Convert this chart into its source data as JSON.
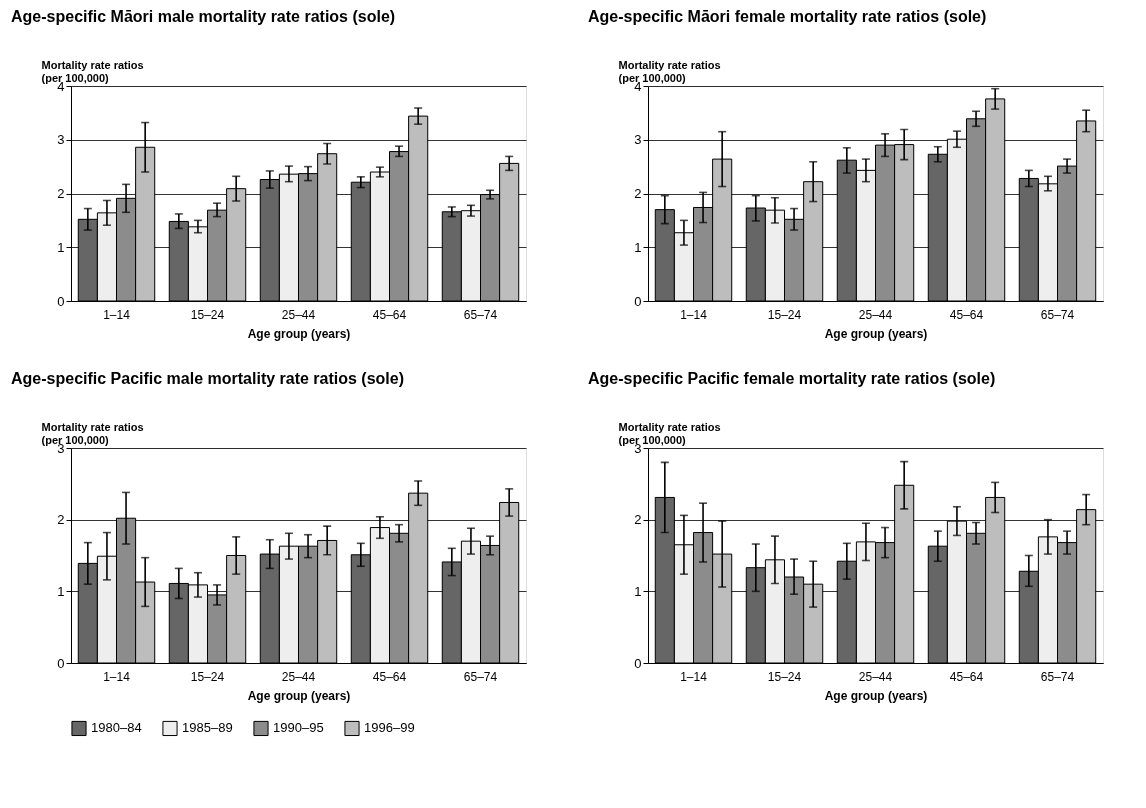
{
  "chart_data": [
    {
      "type": "bar",
      "title": "Age-specific Māori male mortality rate ratios (sole)",
      "ylabel": "Mortality rate ratios\n(per 100,000)",
      "xlabel": "Age group (years)",
      "categories": [
        "1–14",
        "15–24",
        "25–44",
        "45–64",
        "65–74"
      ],
      "ylim": [
        0,
        4
      ],
      "yticks": [
        0,
        1,
        2,
        3,
        4
      ],
      "grid": "y",
      "legend": "bottom",
      "series": [
        {
          "name": "1980–84",
          "color": "#666666",
          "values": [
            1.52,
            1.48,
            2.26,
            2.21,
            1.66
          ],
          "errors": [
            [
              1.32,
              1.72
            ],
            [
              1.35,
              1.62
            ],
            [
              2.1,
              2.42
            ],
            [
              2.11,
              2.31
            ],
            [
              1.57,
              1.75
            ]
          ]
        },
        {
          "name": "1985–89",
          "color": "#eeeeee",
          "values": [
            1.64,
            1.38,
            2.36,
            2.4,
            1.68
          ],
          "errors": [
            [
              1.41,
              1.87
            ],
            [
              1.27,
              1.5
            ],
            [
              2.22,
              2.51
            ],
            [
              2.31,
              2.49
            ],
            [
              1.58,
              1.78
            ]
          ]
        },
        {
          "name": "1990–95",
          "color": "#8c8c8c",
          "values": [
            1.91,
            1.69,
            2.37,
            2.78,
            1.98
          ],
          "errors": [
            [
              1.65,
              2.17
            ],
            [
              1.57,
              1.82
            ],
            [
              2.24,
              2.5
            ],
            [
              2.69,
              2.88
            ],
            [
              1.9,
              2.06
            ]
          ]
        },
        {
          "name": "1996–99",
          "color": "#bdbdbd",
          "values": [
            2.86,
            2.09,
            2.74,
            3.44,
            2.56
          ],
          "errors": [
            [
              2.4,
              3.32
            ],
            [
              1.86,
              2.32
            ],
            [
              2.55,
              2.93
            ],
            [
              3.29,
              3.59
            ],
            [
              2.43,
              2.69
            ]
          ]
        }
      ]
    },
    {
      "type": "bar",
      "title": "Age-specific Māori female mortality rate ratios (sole)",
      "ylabel": "Mortality rate ratios\n(per 100,000)",
      "xlabel": "Age group (years)",
      "categories": [
        "1–14",
        "15–24",
        "25–44",
        "45–64",
        "65–74"
      ],
      "ylim": [
        0,
        4
      ],
      "yticks": [
        0,
        1,
        2,
        3,
        4
      ],
      "grid": "y",
      "legend": "bottom",
      "series": [
        {
          "name": "1980–84",
          "color": "#666666",
          "values": [
            1.7,
            1.73,
            2.62,
            2.73,
            2.28
          ],
          "errors": [
            [
              1.44,
              1.96
            ],
            [
              1.49,
              1.96
            ],
            [
              2.38,
              2.85
            ],
            [
              2.59,
              2.87
            ],
            [
              2.13,
              2.43
            ]
          ]
        },
        {
          "name": "1985–89",
          "color": "#eeeeee",
          "values": [
            1.27,
            1.69,
            2.43,
            3.01,
            2.18
          ],
          "errors": [
            [
              1.04,
              1.5
            ],
            [
              1.45,
              1.92
            ],
            [
              2.22,
              2.64
            ],
            [
              2.86,
              3.16
            ],
            [
              2.05,
              2.32
            ]
          ]
        },
        {
          "name": "1990–95",
          "color": "#8c8c8c",
          "values": [
            1.74,
            1.52,
            2.9,
            3.39,
            2.51
          ],
          "errors": [
            [
              1.46,
              2.02
            ],
            [
              1.32,
              1.72
            ],
            [
              2.69,
              3.11
            ],
            [
              3.25,
              3.53
            ],
            [
              2.38,
              2.64
            ]
          ]
        },
        {
          "name": "1996–99",
          "color": "#bdbdbd",
          "values": [
            2.64,
            2.22,
            2.91,
            3.76,
            3.35
          ],
          "errors": [
            [
              2.13,
              3.15
            ],
            [
              1.85,
              2.59
            ],
            [
              2.63,
              3.19
            ],
            [
              3.57,
              3.95
            ],
            [
              3.15,
              3.55
            ]
          ]
        }
      ]
    },
    {
      "type": "bar",
      "title": "Age-specific Pacific male mortality rate ratios (sole)",
      "ylabel": "Mortality rate ratios\n(per 100,000)",
      "xlabel": "Age group (years)",
      "categories": [
        "1–14",
        "15–24",
        "25–44",
        "45–64",
        "65–74"
      ],
      "ylim": [
        0,
        3
      ],
      "yticks": [
        0,
        1,
        2,
        3
      ],
      "grid": "y",
      "legend": "bottom",
      "series": [
        {
          "name": "1980–84",
          "color": "#666666",
          "values": [
            1.39,
            1.11,
            1.52,
            1.51,
            1.41
          ],
          "errors": [
            [
              1.1,
              1.68
            ],
            [
              0.9,
              1.32
            ],
            [
              1.32,
              1.72
            ],
            [
              1.35,
              1.67
            ],
            [
              1.22,
              1.6
            ]
          ]
        },
        {
          "name": "1985–89",
          "color": "#eeeeee",
          "values": [
            1.49,
            1.09,
            1.63,
            1.89,
            1.7
          ],
          "errors": [
            [
              1.16,
              1.82
            ],
            [
              0.92,
              1.26
            ],
            [
              1.45,
              1.81
            ],
            [
              1.74,
              2.04
            ],
            [
              1.52,
              1.88
            ]
          ]
        },
        {
          "name": "1990–95",
          "color": "#8c8c8c",
          "values": [
            2.02,
            0.95,
            1.63,
            1.81,
            1.64
          ],
          "errors": [
            [
              1.66,
              2.38
            ],
            [
              0.81,
              1.09
            ],
            [
              1.47,
              1.79
            ],
            [
              1.69,
              1.93
            ],
            [
              1.51,
              1.77
            ]
          ]
        },
        {
          "name": "1996–99",
          "color": "#bdbdbd",
          "values": [
            1.13,
            1.5,
            1.71,
            2.37,
            2.24
          ],
          "errors": [
            [
              0.79,
              1.47
            ],
            [
              1.24,
              1.76
            ],
            [
              1.51,
              1.91
            ],
            [
              2.2,
              2.54
            ],
            [
              2.05,
              2.43
            ]
          ]
        }
      ]
    },
    {
      "type": "bar",
      "title": "Age-specific Pacific female mortality rate ratios (sole)",
      "ylabel": "Mortality rate ratios\n(per 100,000)",
      "xlabel": "Age group (years)",
      "categories": [
        "1–14",
        "15–24",
        "25–44",
        "45–64",
        "65–74"
      ],
      "ylim": [
        0,
        3
      ],
      "yticks": [
        0,
        1,
        2,
        3
      ],
      "grid": "y",
      "legend": "bottom",
      "series": [
        {
          "name": "1980–84",
          "color": "#666666",
          "values": [
            2.31,
            1.33,
            1.42,
            1.63,
            1.28
          ],
          "errors": [
            [
              1.82,
              2.8
            ],
            [
              1.0,
              1.66
            ],
            [
              1.17,
              1.67
            ],
            [
              1.42,
              1.84
            ],
            [
              1.07,
              1.5
            ]
          ]
        },
        {
          "name": "1985–89",
          "color": "#eeeeee",
          "values": [
            1.65,
            1.44,
            1.69,
            1.98,
            1.76
          ],
          "errors": [
            [
              1.24,
              2.06
            ],
            [
              1.11,
              1.77
            ],
            [
              1.43,
              1.95
            ],
            [
              1.78,
              2.18
            ],
            [
              1.52,
              2.0
            ]
          ]
        },
        {
          "name": "1990–95",
          "color": "#8c8c8c",
          "values": [
            1.82,
            1.2,
            1.68,
            1.81,
            1.68
          ],
          "errors": [
            [
              1.41,
              2.23
            ],
            [
              0.96,
              1.45
            ],
            [
              1.47,
              1.89
            ],
            [
              1.66,
              1.96
            ],
            [
              1.52,
              1.84
            ]
          ]
        },
        {
          "name": "1996–99",
          "color": "#bdbdbd",
          "values": [
            1.52,
            1.1,
            2.48,
            2.31,
            2.14
          ],
          "errors": [
            [
              1.06,
              1.98
            ],
            [
              0.78,
              1.42
            ],
            [
              2.15,
              2.81
            ],
            [
              2.1,
              2.52
            ],
            [
              1.93,
              2.35
            ]
          ]
        }
      ]
    }
  ]
}
